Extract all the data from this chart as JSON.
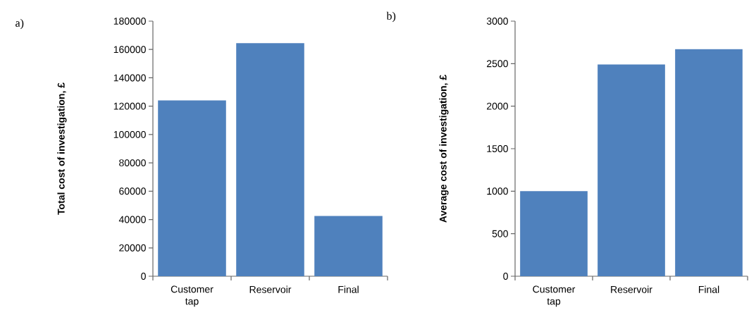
{
  "chart_data": [
    {
      "type": "bar",
      "annotations": [
        "a)"
      ],
      "ylabel": "Total cost of investigation, £",
      "categories": [
        "Customer tap",
        "Reservoir",
        "Final"
      ],
      "values": [
        124000,
        164500,
        42500
      ],
      "color": "#4f81bd",
      "ylim": [
        0,
        180000
      ],
      "yticks": [
        0,
        20000,
        40000,
        60000,
        80000,
        100000,
        120000,
        140000,
        160000,
        180000
      ],
      "grid": false
    },
    {
      "type": "bar",
      "annotations": [
        "b)"
      ],
      "ylabel": "Average cost of investigation, £",
      "categories": [
        "Customer tap",
        "Reservoir",
        "Final"
      ],
      "values": [
        1000,
        2490,
        2670
      ],
      "color": "#4f81bd",
      "ylim": [
        0,
        3000
      ],
      "yticks": [
        0,
        500,
        1000,
        1500,
        2000,
        2500,
        3000
      ],
      "grid": false
    }
  ]
}
